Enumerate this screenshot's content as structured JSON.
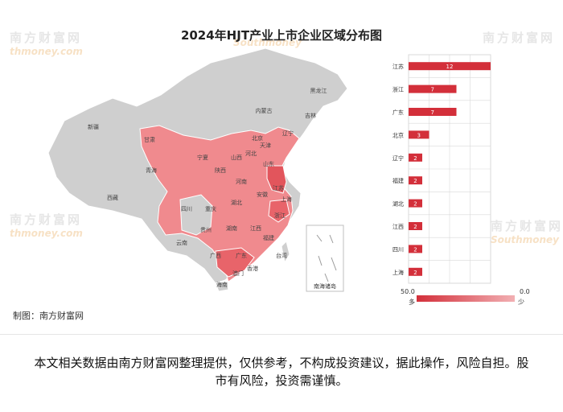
{
  "title": "2024年HJT产业上市企业区域分布图",
  "credit": "制图：南方财富网",
  "watermark": {
    "cn": "南方财富网",
    "en": "thmoney.com",
    "en2": "Southmoney"
  },
  "legend": {
    "max": "50.0",
    "min": "0.0",
    "many": "多",
    "few": "少"
  },
  "south_sea_label": "南海诸岛",
  "disclaimer": "本文相关数据由南方财富网整理提供，仅供参考，不构成投资建议，据此操作，风险自担。股市有风险，投资需谨慎。",
  "colors": {
    "bar": "#d32f3a",
    "highlight": "#f08080",
    "land": "#cfcfcf",
    "border": "#ffffff"
  },
  "map_labels": [
    "黑龙江",
    "吉林",
    "内蒙古",
    "辽宁",
    "北京",
    "天津",
    "河北",
    "山西",
    "山东",
    "新疆",
    "甘肃",
    "宁夏",
    "陕西",
    "河南",
    "江苏",
    "青海",
    "西藏",
    "四川",
    "重庆",
    "湖北",
    "安徽",
    "上海",
    "浙江",
    "江西",
    "湖南",
    "贵州",
    "云南",
    "广西",
    "福建",
    "广东",
    "台湾",
    "香港",
    "澳门",
    "海南"
  ],
  "chart_data": {
    "type": "bar",
    "orientation": "horizontal",
    "categories": [
      "江苏",
      "浙江",
      "广东",
      "北京",
      "辽宁",
      "福建",
      "湖北",
      "江西",
      "四川",
      "上海"
    ],
    "values": [
      12,
      7,
      7,
      3,
      2,
      2,
      2,
      2,
      2,
      2
    ],
    "xlim": [
      0,
      12
    ],
    "grid": true,
    "visual_map_range": [
      0,
      50
    ]
  }
}
